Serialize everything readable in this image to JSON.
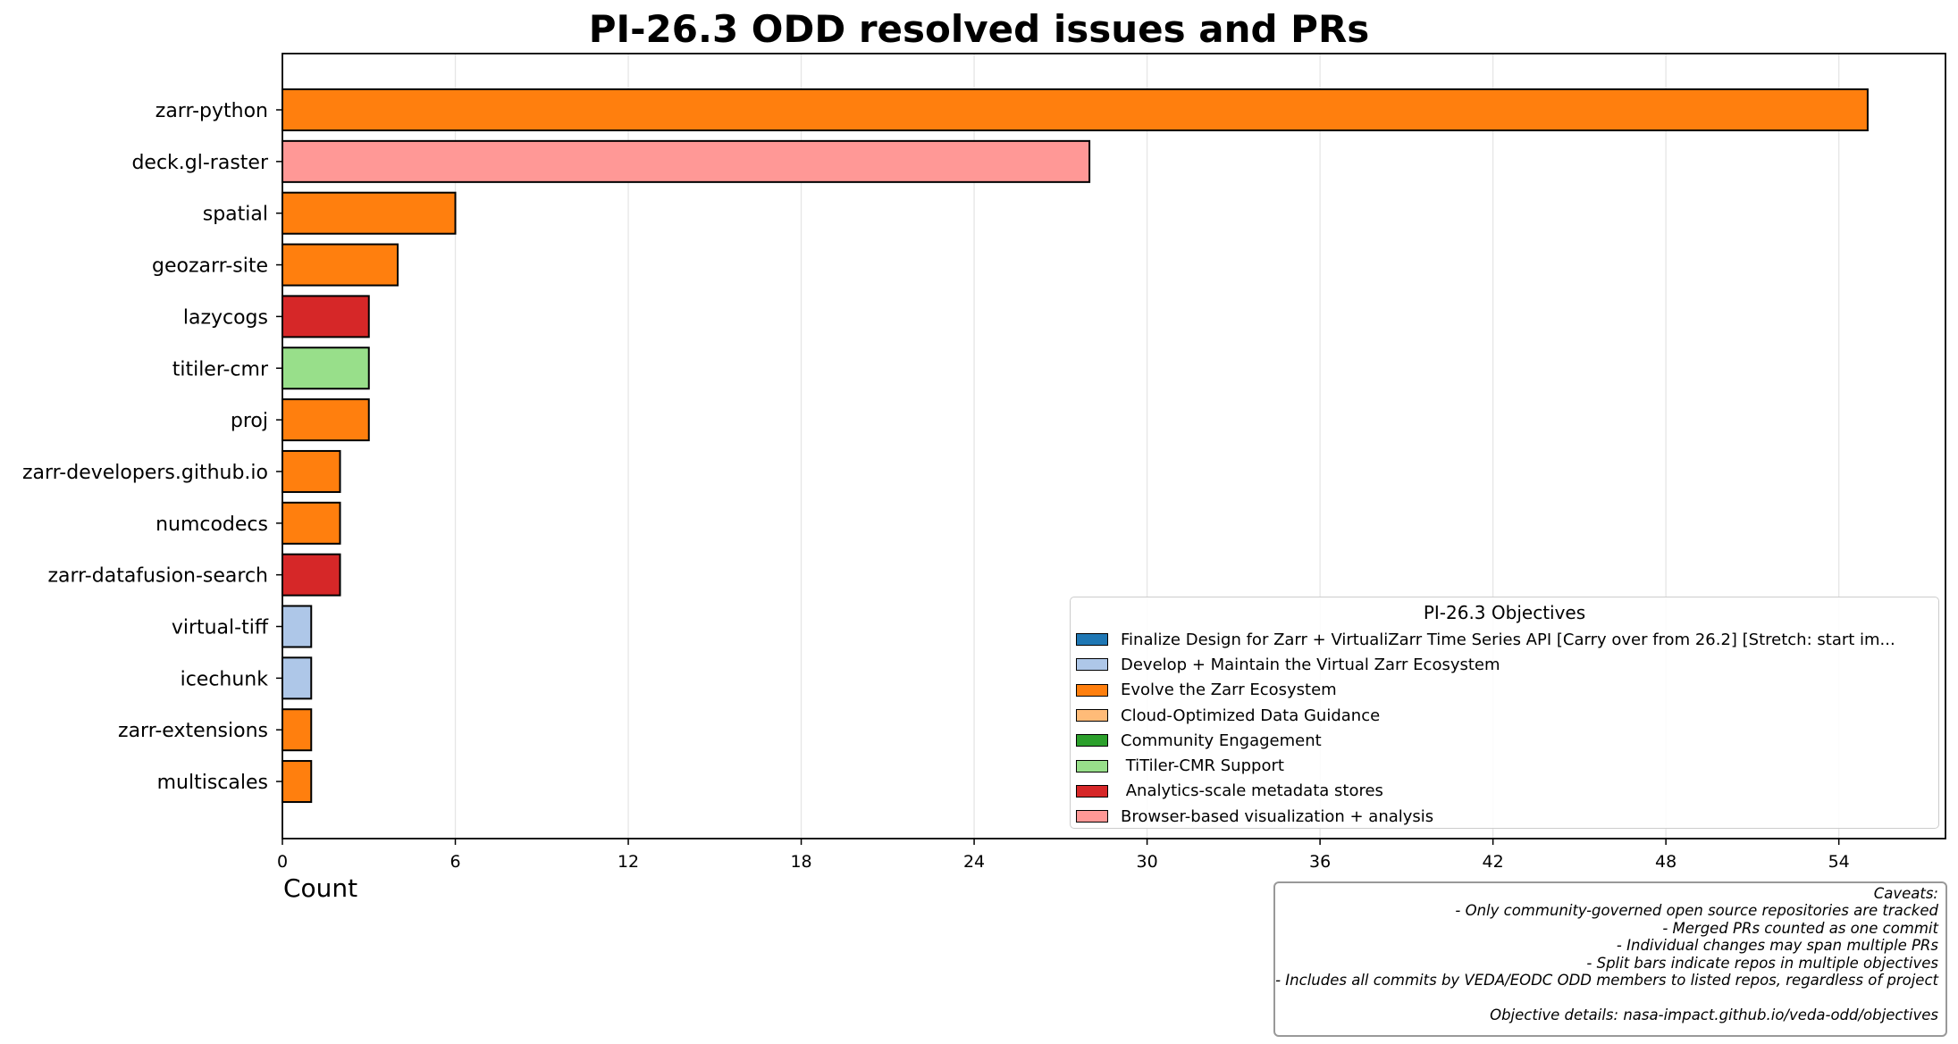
{
  "chart_data": {
    "type": "bar",
    "orientation": "horizontal",
    "title": "PI-26.3 ODD resolved issues and PRs",
    "xlabel": "Count",
    "ylabel": "",
    "xlim": [
      0,
      57.7
    ],
    "xticks": [
      0,
      6,
      12,
      18,
      24,
      30,
      36,
      42,
      48,
      54
    ],
    "grid": "vertical",
    "categories": [
      "zarr-python",
      "deck.gl-raster",
      "spatial",
      "geozarr-site",
      "lazycogs",
      "titiler-cmr",
      "proj",
      "zarr-developers.github.io",
      "numcodecs",
      "zarr-datafusion-search",
      "virtual-tiff",
      "icechunk",
      "zarr-extensions",
      "multiscales"
    ],
    "values": [
      55,
      28,
      6,
      4,
      3,
      3,
      3,
      2,
      2,
      2,
      1,
      1,
      1,
      1
    ],
    "bar_colors": [
      "#ff7f0e",
      "#ff9896",
      "#ff7f0e",
      "#ff7f0e",
      "#d62728",
      "#98df8a",
      "#ff7f0e",
      "#ff7f0e",
      "#ff7f0e",
      "#d62728",
      "#aec7e8",
      "#aec7e8",
      "#ff7f0e",
      "#ff7f0e"
    ],
    "legend": {
      "title": "PI-26.3 Objectives",
      "placement": "lower-right",
      "items": [
        {
          "label": "Finalize Design for Zarr + VirtualiZarr Time Series API [Carry over from 26.2] [Stretch: start im...",
          "color": "#1f77b4"
        },
        {
          "label": "Develop + Maintain the Virtual Zarr Ecosystem",
          "color": "#aec7e8"
        },
        {
          "label": "Evolve the Zarr Ecosystem",
          "color": "#ff7f0e"
        },
        {
          "label": "Cloud-Optimized Data Guidance",
          "color": "#ffbb78"
        },
        {
          "label": "Community Engagement",
          "color": "#2ca02c"
        },
        {
          "label": " TiTiler-CMR Support",
          "color": "#98df8a"
        },
        {
          "label": " Analytics-scale metadata stores",
          "color": "#d62728"
        },
        {
          "label": "Browser-based visualization + analysis",
          "color": "#ff9896"
        }
      ]
    }
  },
  "caveats": [
    "Caveats:",
    "- Only community-governed open source repositories are tracked",
    "- Merged PRs counted as one commit",
    "- Individual changes may span multiple PRs",
    "- Split bars indicate repos in multiple objectives",
    "- Includes all commits by VEDA/EODC ODD members to listed repos, regardless of project",
    "",
    "Objective details: nasa-impact.github.io/veda-odd/objectives"
  ]
}
